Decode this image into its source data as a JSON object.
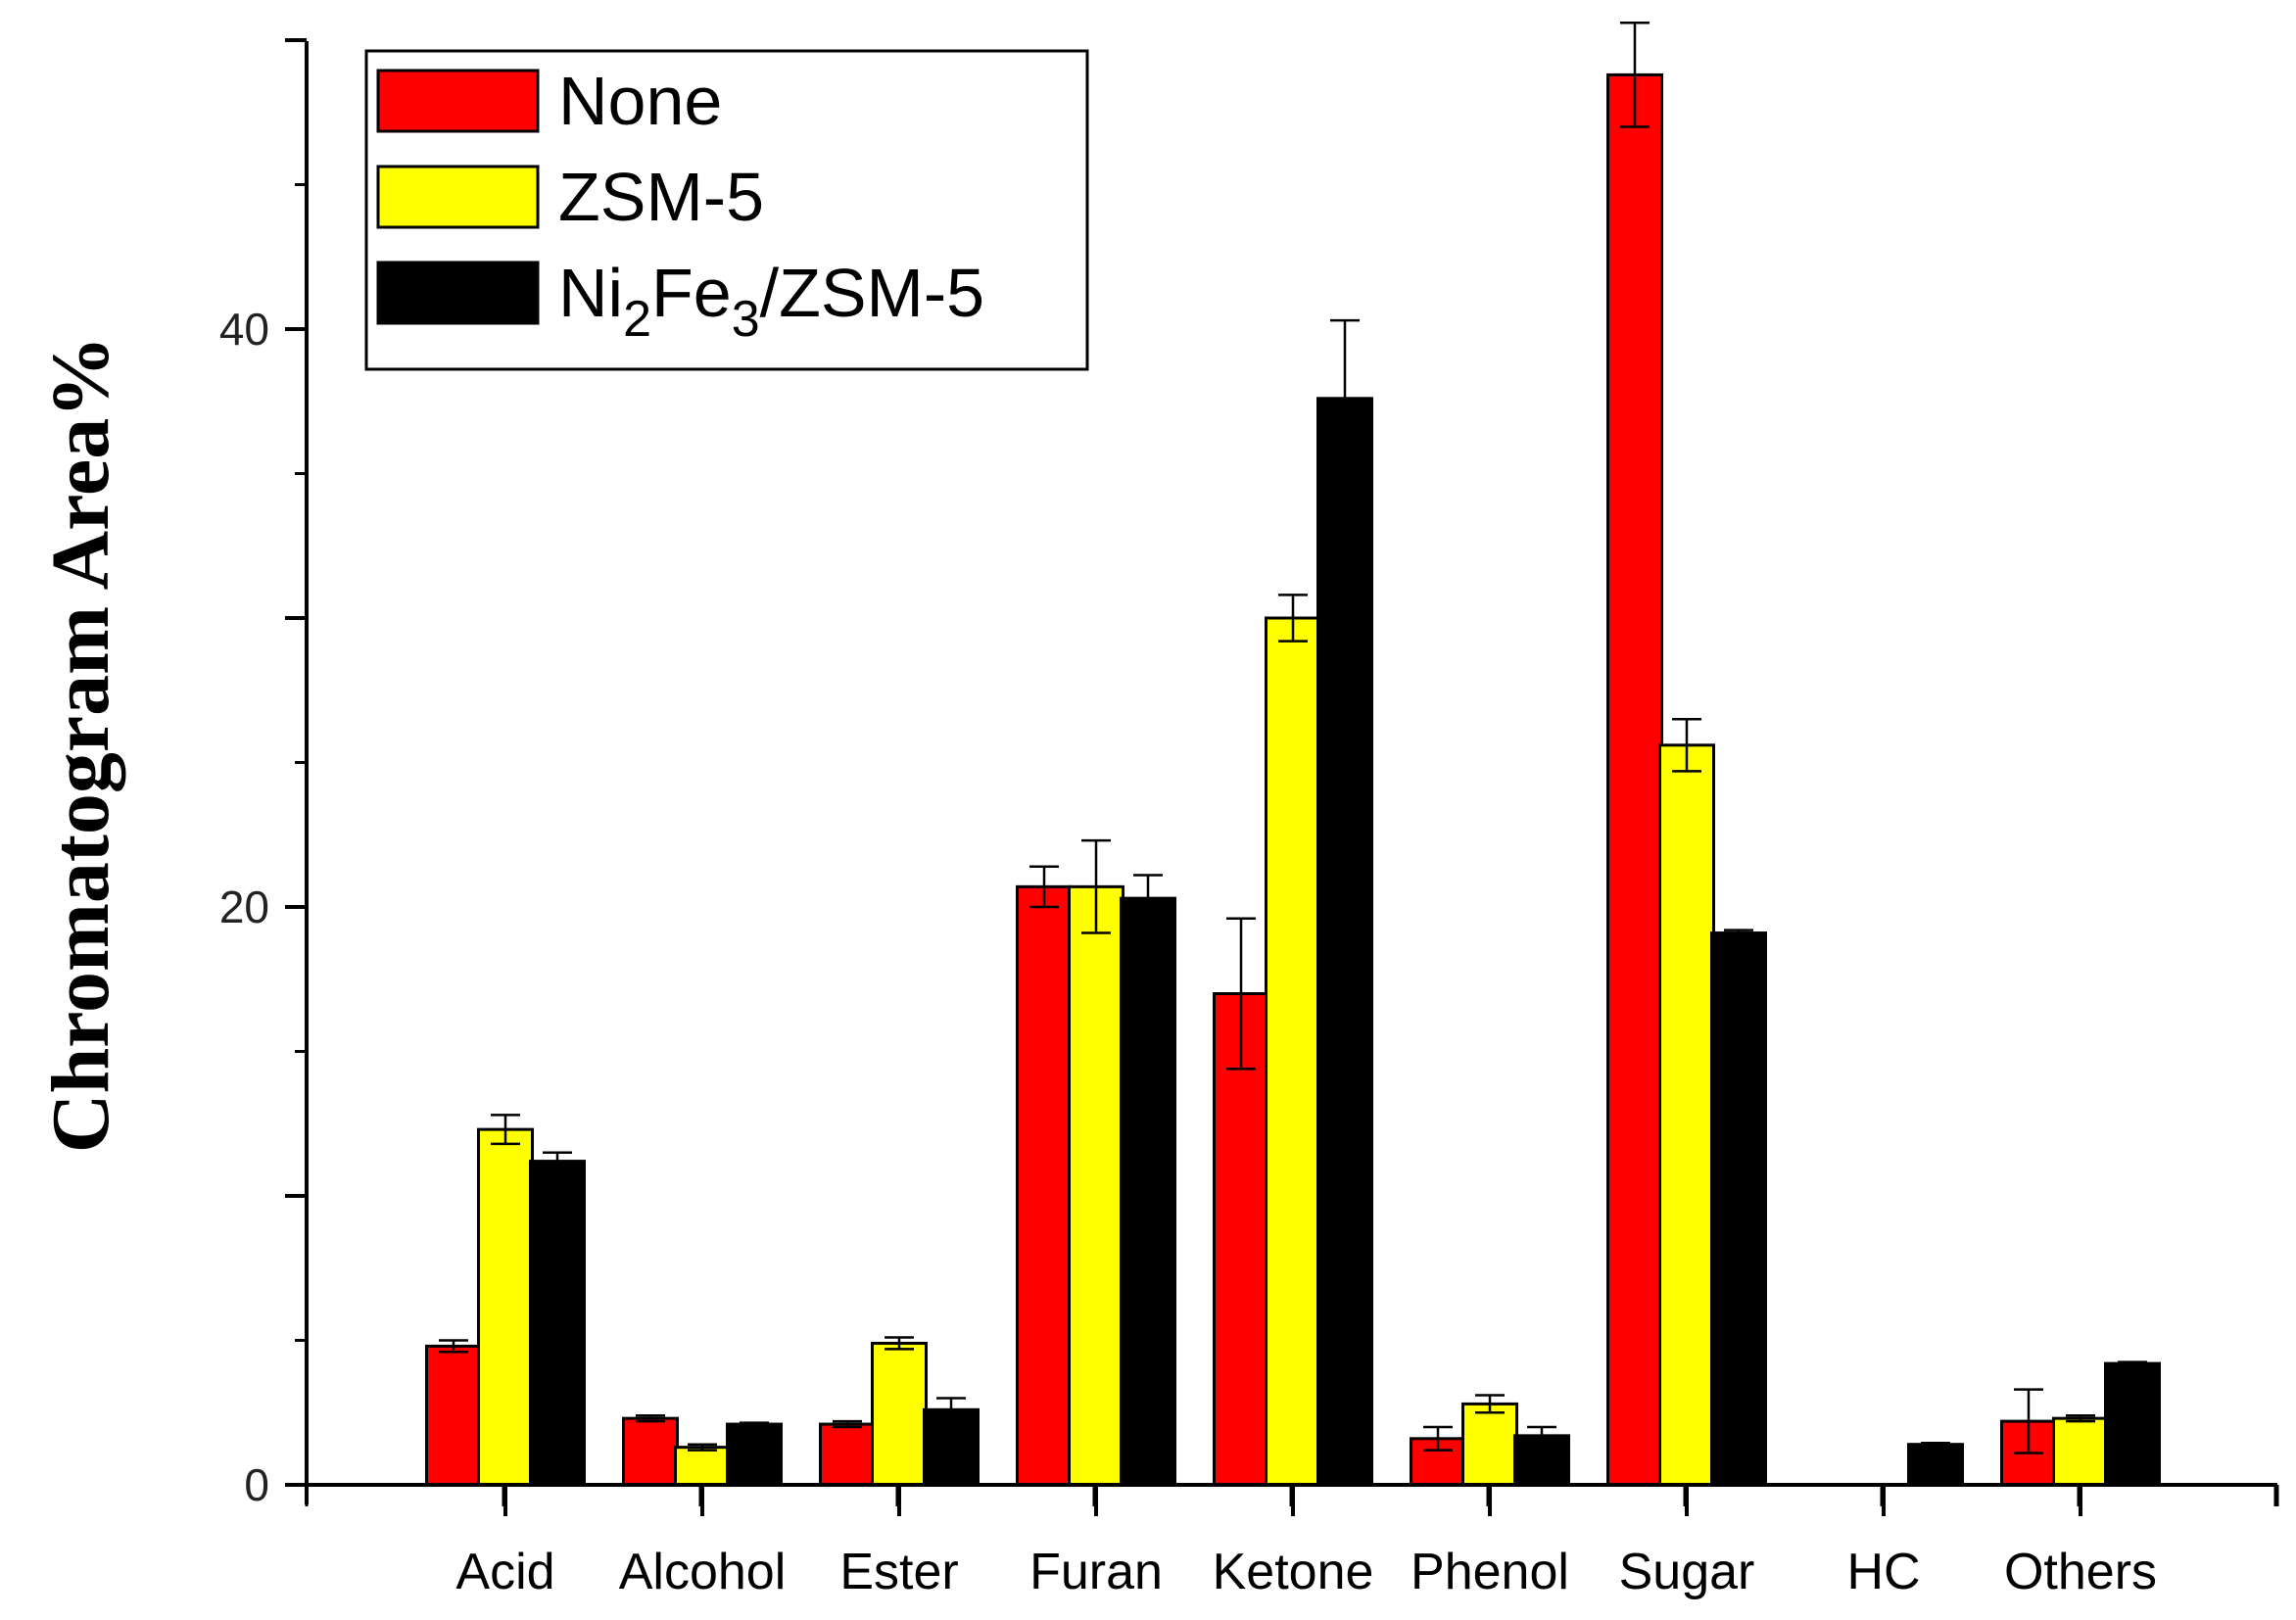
{
  "chart_data": {
    "type": "bar",
    "title": "",
    "xlabel": "",
    "ylabel": "Chromatogram Area%",
    "ylim": [
      0,
      50
    ],
    "yticks": [
      0,
      20,
      40
    ],
    "grid": false,
    "legend_position": "top-left",
    "categories": [
      "Acid",
      "Alcohol",
      "Ester",
      "Furan",
      "Ketone",
      "Phenol",
      "Sugar",
      "HC",
      "Others"
    ],
    "series": [
      {
        "name": "None",
        "legend_parts": [
          "None"
        ],
        "color": "#ff0000",
        "values": [
          4.8,
          2.3,
          2.1,
          20.7,
          17.0,
          1.6,
          48.8,
          0,
          2.2
        ],
        "errors": [
          0.2,
          0.1,
          0.1,
          0.7,
          2.6,
          0.4,
          1.8,
          0,
          1.1
        ]
      },
      {
        "name": "ZSM-5",
        "legend_parts": [
          "ZSM-5"
        ],
        "color": "#ffff00",
        "values": [
          12.3,
          1.3,
          4.9,
          20.7,
          30.0,
          2.8,
          25.6,
          0,
          2.3
        ],
        "errors": [
          0.5,
          0.1,
          0.2,
          1.6,
          0.8,
          0.3,
          0.9,
          0,
          0.1
        ]
      },
      {
        "name": "Ni2Fe3/ZSM-5",
        "legend_parts": [
          "Ni",
          "2",
          "Fe",
          "3",
          "/ZSM-5"
        ],
        "color": "#000000",
        "values": [
          11.2,
          2.1,
          2.6,
          20.3,
          37.6,
          1.7,
          19.1,
          1.4,
          4.2
        ],
        "errors": [
          0.3,
          0.05,
          0.4,
          0.8,
          2.7,
          0.3,
          0.1,
          0.05,
          0.05
        ]
      }
    ]
  }
}
